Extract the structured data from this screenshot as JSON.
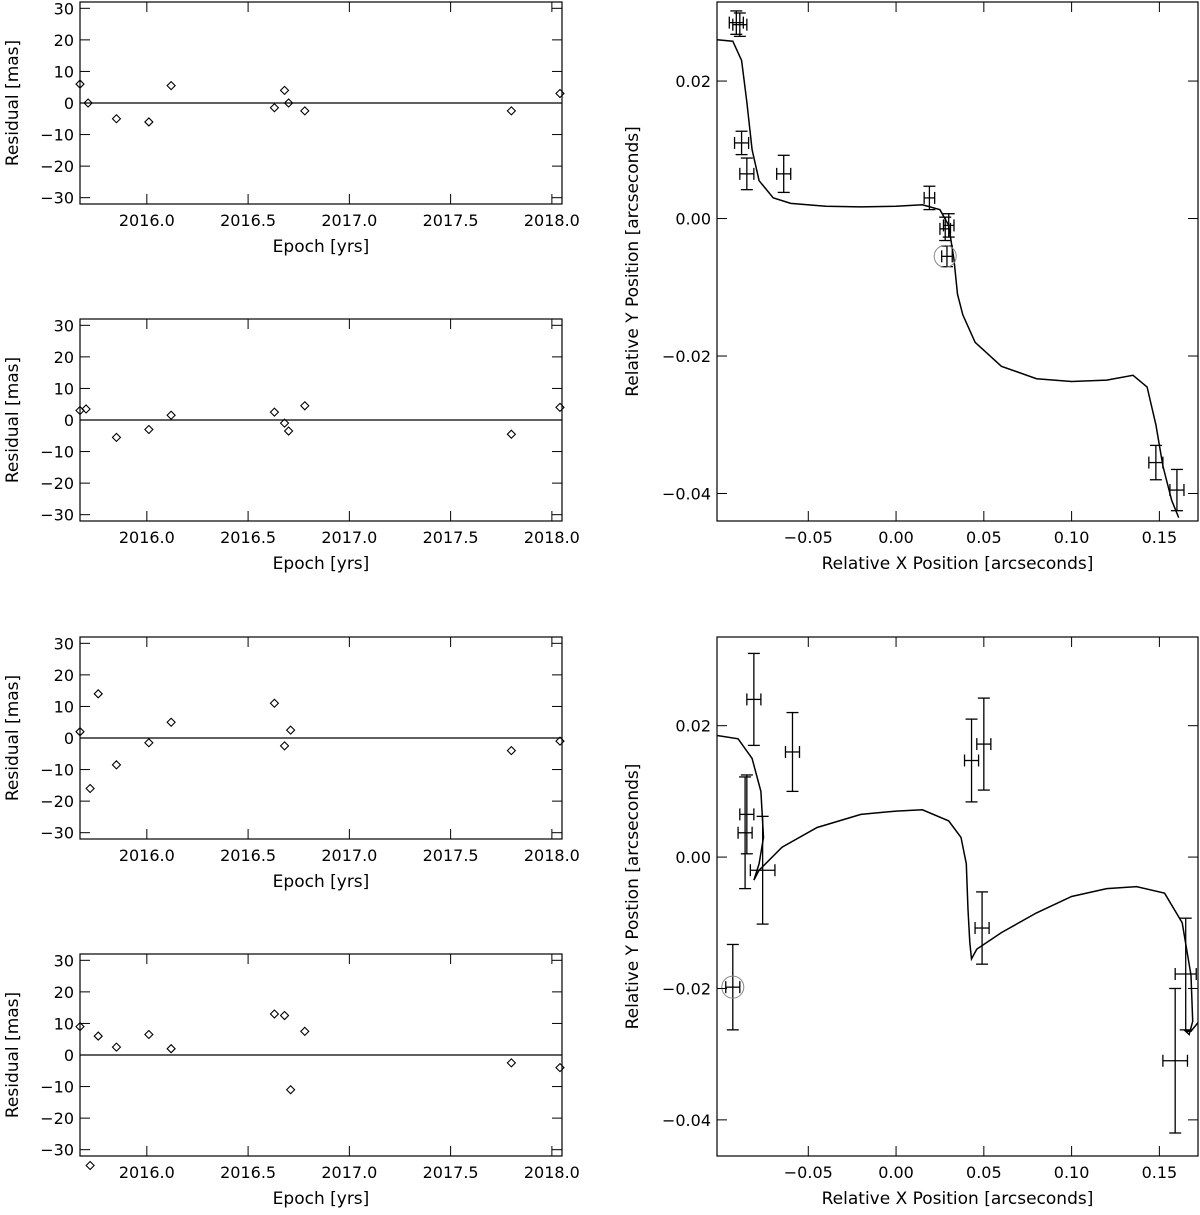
{
  "colors": {
    "foreground": "#000000",
    "background": "#ffffff",
    "marker_circle": "#888888"
  },
  "chart_data": [
    {
      "id": "res1",
      "type": "scatter",
      "marker": "diamond",
      "xlabel": "Epoch [yrs]",
      "ylabel": "Residual   [mas]",
      "xlim": [
        2015.67,
        2018.05
      ],
      "ylim": [
        -32,
        32
      ],
      "xticks": [
        2016.0,
        2016.5,
        2017.0,
        2017.5,
        2018.0
      ],
      "xticklabels": [
        "2016.0",
        "2016.5",
        "2017.0",
        "2017.5",
        "2018.0"
      ],
      "yticks": [
        -30,
        -20,
        -10,
        0,
        10,
        20,
        30
      ],
      "yticklabels": [
        "−30",
        "−20",
        "−10",
        "0",
        "10",
        "20",
        "30"
      ],
      "reference_line_y": 0,
      "x": [
        2015.67,
        2015.71,
        2015.85,
        2016.01,
        2016.12,
        2016.63,
        2016.68,
        2016.7,
        2016.78,
        2017.8,
        2018.04
      ],
      "y": [
        6,
        0,
        -5,
        -6,
        5.5,
        -1.5,
        4,
        0,
        -2.5,
        -2.5,
        3
      ]
    },
    {
      "id": "res2",
      "type": "scatter",
      "marker": "diamond",
      "xlabel": "Epoch [yrs]",
      "ylabel": "Residual   [mas]",
      "xlim": [
        2015.67,
        2018.05
      ],
      "ylim": [
        -32,
        32
      ],
      "xticks": [
        2016.0,
        2016.5,
        2017.0,
        2017.5,
        2018.0
      ],
      "xticklabels": [
        "2016.0",
        "2016.5",
        "2017.0",
        "2017.5",
        "2018.0"
      ],
      "yticks": [
        -30,
        -20,
        -10,
        0,
        10,
        20,
        30
      ],
      "yticklabels": [
        "−30",
        "−20",
        "−10",
        "0",
        "10",
        "20",
        "30"
      ],
      "reference_line_y": 0,
      "x": [
        2015.67,
        2015.7,
        2015.85,
        2016.01,
        2016.12,
        2016.63,
        2016.68,
        2016.7,
        2016.78,
        2017.8,
        2018.04
      ],
      "y": [
        3,
        3.5,
        -5.5,
        -3,
        1.5,
        2.5,
        -1,
        -3.5,
        4.5,
        -4.5,
        4
      ]
    },
    {
      "id": "res3",
      "type": "scatter",
      "marker": "diamond",
      "xlabel": "Epoch [yrs]",
      "ylabel": "Residual   [mas]",
      "xlim": [
        2015.67,
        2018.05
      ],
      "ylim": [
        -32,
        32
      ],
      "xticks": [
        2016.0,
        2016.5,
        2017.0,
        2017.5,
        2018.0
      ],
      "xticklabels": [
        "2016.0",
        "2016.5",
        "2017.0",
        "2017.5",
        "2018.0"
      ],
      "yticks": [
        -30,
        -20,
        -10,
        0,
        10,
        20,
        30
      ],
      "yticklabels": [
        "−30",
        "−20",
        "−10",
        "0",
        "10",
        "20",
        "30"
      ],
      "reference_line_y": 0,
      "x": [
        2015.67,
        2015.72,
        2015.76,
        2015.85,
        2016.01,
        2016.12,
        2016.63,
        2016.68,
        2016.71,
        2017.8,
        2018.04
      ],
      "y": [
        2,
        -16,
        14,
        -8.5,
        -1.5,
        5,
        11,
        -2.5,
        2.5,
        -4,
        -1
      ]
    },
    {
      "id": "res4",
      "type": "scatter",
      "marker": "diamond",
      "xlabel": "Epoch [yrs]",
      "ylabel": "Residual   [mas]",
      "xlim": [
        2015.67,
        2018.05
      ],
      "ylim": [
        -32,
        32
      ],
      "xticks": [
        2016.0,
        2016.5,
        2017.0,
        2017.5,
        2018.0
      ],
      "xticklabels": [
        "2016.0",
        "2016.5",
        "2017.0",
        "2017.5",
        "2018.0"
      ],
      "yticks": [
        -30,
        -20,
        -10,
        0,
        10,
        20,
        30
      ],
      "yticklabels": [
        "−30",
        "−20",
        "−10",
        "0",
        "10",
        "20",
        "30"
      ],
      "reference_line_y": 0,
      "x": [
        2015.67,
        2015.72,
        2015.76,
        2015.85,
        2016.01,
        2016.12,
        2016.63,
        2016.68,
        2016.71,
        2016.78,
        2017.8,
        2018.04
      ],
      "y": [
        9,
        -35,
        6,
        2.5,
        6.5,
        2,
        13,
        12.5,
        -11,
        7.5,
        -2.5,
        -4
      ]
    },
    {
      "id": "orbit1",
      "type": "line",
      "xlabel": "Relative X Position [arcseconds]",
      "ylabel": "Relative Y Position [arcseconds]",
      "xlim": [
        -0.102,
        0.172
      ],
      "ylim": [
        -0.044,
        0.0315
      ],
      "xticks": [
        -0.05,
        0.0,
        0.05,
        0.1,
        0.15
      ],
      "xticklabels": [
        "−0.05",
        "0.00",
        "0.05",
        "0.10",
        "0.15"
      ],
      "yticks": [
        -0.04,
        -0.02,
        0.0,
        0.02
      ],
      "yticklabels": [
        "−0.04",
        "−0.02",
        "0.00",
        "0.02"
      ],
      "model_curve": [
        [
          -0.102,
          0.026
        ],
        [
          -0.093,
          0.0258
        ],
        [
          -0.088,
          0.023
        ],
        [
          -0.085,
          0.017
        ],
        [
          -0.082,
          0.01
        ],
        [
          -0.078,
          0.0055
        ],
        [
          -0.07,
          0.003
        ],
        [
          -0.06,
          0.0022
        ],
        [
          -0.04,
          0.0018
        ],
        [
          -0.02,
          0.0017
        ],
        [
          0.0,
          0.0018
        ],
        [
          0.015,
          0.002
        ],
        [
          0.025,
          0.0013
        ],
        [
          0.03,
          -0.001
        ],
        [
          0.033,
          -0.006
        ],
        [
          0.035,
          -0.011
        ],
        [
          0.038,
          -0.014
        ],
        [
          0.045,
          -0.018
        ],
        [
          0.06,
          -0.0215
        ],
        [
          0.08,
          -0.0233
        ],
        [
          0.1,
          -0.0237
        ],
        [
          0.12,
          -0.0235
        ],
        [
          0.135,
          -0.0228
        ],
        [
          0.143,
          -0.0245
        ],
        [
          0.148,
          -0.03
        ],
        [
          0.152,
          -0.036
        ],
        [
          0.157,
          -0.041
        ],
        [
          0.161,
          -0.0435
        ]
      ],
      "points": [
        {
          "x": -0.091,
          "y": 0.0285,
          "xerr": 0.004,
          "yerr": 0.0017
        },
        {
          "x": -0.089,
          "y": 0.0282,
          "xerr": 0.004,
          "yerr": 0.0017
        },
        {
          "x": -0.088,
          "y": 0.011,
          "xerr": 0.004,
          "yerr": 0.0017
        },
        {
          "x": -0.085,
          "y": 0.0065,
          "xerr": 0.004,
          "yerr": 0.0023
        },
        {
          "x": -0.064,
          "y": 0.0065,
          "xerr": 0.004,
          "yerr": 0.0027
        },
        {
          "x": 0.019,
          "y": 0.003,
          "xerr": 0.003,
          "yerr": 0.0017
        },
        {
          "x": 0.028,
          "y": -0.0015,
          "xerr": 0.003,
          "yerr": 0.0017
        },
        {
          "x": 0.03,
          "y": -0.001,
          "xerr": 0.003,
          "yerr": 0.0017
        },
        {
          "x": 0.029,
          "y": -0.0055,
          "xerr": 0.003,
          "yerr": 0.0015
        },
        {
          "x": 0.148,
          "y": -0.0355,
          "xerr": 0.004,
          "yerr": 0.0025
        },
        {
          "x": 0.16,
          "y": -0.0395,
          "xerr": 0.004,
          "yerr": 0.003
        }
      ],
      "circled_point": {
        "x": 0.028,
        "y": -0.0055
      }
    },
    {
      "id": "orbit2",
      "type": "line",
      "xlabel": "Relative X Position [arcseconds]",
      "ylabel": "Relative Y Postion [arcseconds]",
      "xlim": [
        -0.102,
        0.172
      ],
      "ylim": [
        -0.0455,
        0.0335
      ],
      "xticks": [
        -0.05,
        0.0,
        0.05,
        0.1,
        0.15
      ],
      "xticklabels": [
        "−0.05",
        "0.00",
        "0.05",
        "0.10",
        "0.15"
      ],
      "yticks": [
        -0.04,
        -0.02,
        0.0,
        0.02
      ],
      "yticklabels": [
        "−0.04",
        "−0.02",
        "0.00",
        "0.02"
      ],
      "model_curve": [
        [
          -0.102,
          0.0185
        ],
        [
          -0.09,
          0.018
        ],
        [
          -0.082,
          0.015
        ],
        [
          -0.077,
          0.01
        ],
        [
          -0.0755,
          0.003
        ],
        [
          -0.078,
          -0.001
        ],
        [
          -0.081,
          -0.0035
        ],
        [
          -0.078,
          -0.002
        ],
        [
          -0.065,
          0.0015
        ],
        [
          -0.045,
          0.0045
        ],
        [
          -0.02,
          0.0065
        ],
        [
          0.0,
          0.007
        ],
        [
          0.015,
          0.0072
        ],
        [
          0.03,
          0.0055
        ],
        [
          0.037,
          0.003
        ],
        [
          0.04,
          -0.001
        ],
        [
          0.041,
          -0.008
        ],
        [
          0.042,
          -0.013
        ],
        [
          0.043,
          -0.0155
        ],
        [
          0.046,
          -0.014
        ],
        [
          0.06,
          -0.0115
        ],
        [
          0.08,
          -0.0085
        ],
        [
          0.1,
          -0.006
        ],
        [
          0.12,
          -0.0048
        ],
        [
          0.137,
          -0.0045
        ],
        [
          0.153,
          -0.0055
        ],
        [
          0.163,
          -0.01
        ],
        [
          0.168,
          -0.018
        ],
        [
          0.169,
          -0.025
        ],
        [
          0.167,
          -0.027
        ],
        [
          0.165,
          -0.0265
        ],
        [
          0.168,
          -0.0265
        ],
        [
          0.172,
          -0.0252
        ]
      ],
      "points": [
        {
          "x": -0.093,
          "y": -0.0198,
          "xerr": 0.004,
          "yerr": 0.0065
        },
        {
          "x": -0.086,
          "y": 0.0037,
          "xerr": 0.004,
          "yerr": 0.0085
        },
        {
          "x": -0.085,
          "y": 0.0065,
          "xerr": 0.004,
          "yerr": 0.006
        },
        {
          "x": -0.081,
          "y": 0.024,
          "xerr": 0.004,
          "yerr": 0.007
        },
        {
          "x": -0.059,
          "y": 0.016,
          "xerr": 0.004,
          "yerr": 0.006
        },
        {
          "x": -0.076,
          "y": -0.002,
          "xerr": 0.007,
          "yerr": 0.0082
        },
        {
          "x": 0.043,
          "y": 0.0147,
          "xerr": 0.004,
          "yerr": 0.0063
        },
        {
          "x": 0.05,
          "y": 0.0172,
          "xerr": 0.004,
          "yerr": 0.007
        },
        {
          "x": 0.049,
          "y": -0.0108,
          "xerr": 0.004,
          "yerr": 0.0055
        },
        {
          "x": 0.159,
          "y": -0.031,
          "xerr": 0.007,
          "yerr": 0.011
        },
        {
          "x": 0.165,
          "y": -0.0178,
          "xerr": 0.006,
          "yerr": 0.0085
        }
      ],
      "circled_point": {
        "x": -0.093,
        "y": -0.0198
      }
    }
  ]
}
